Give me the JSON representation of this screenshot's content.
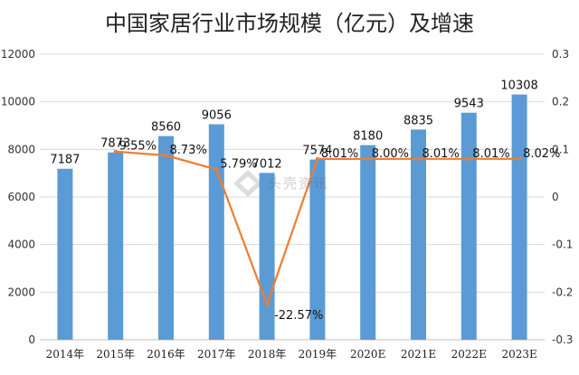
{
  "chart_data": {
    "type": "bar",
    "title": "中国家居行业市场规模（亿元）及增速",
    "categories": [
      "2014年",
      "2015年",
      "2016年",
      "2017年",
      "2018年",
      "2019年",
      "2020E",
      "2021E",
      "2022E",
      "2023E"
    ],
    "series": [
      {
        "type": "bar",
        "axis": "left",
        "values": [
          7187,
          7873,
          8560,
          9056,
          7012,
          7574,
          8180,
          8835,
          9543,
          10308
        ],
        "labels": [
          "7187",
          "7873",
          "8560",
          "9056",
          "7012",
          "7574",
          "8180",
          "8835",
          "9543",
          "10308"
        ],
        "color": "#5b9bd5"
      },
      {
        "type": "line",
        "axis": "right",
        "values": [
          null,
          0.0955,
          0.0873,
          0.0579,
          -0.2257,
          0.0801,
          0.08,
          0.0801,
          0.0801,
          0.0802
        ],
        "labels": [
          "",
          "9.55%",
          "8.73%",
          "5.79%",
          "-22.57%",
          "8.01%",
          "8.00%",
          "8.01%",
          "8.01%",
          "8.02%"
        ],
        "color": "#ed7d31"
      }
    ],
    "y_left": {
      "ylim": [
        0,
        12000
      ],
      "ticks": [
        "0",
        "2000",
        "4000",
        "6000",
        "8000",
        "10000",
        "12000"
      ]
    },
    "y_right": {
      "ylim": [
        -0.3,
        0.3
      ],
      "ticks": [
        "-0.3",
        "-0.2",
        "-0.1",
        "0",
        "0.1",
        "0.2",
        "0.3"
      ]
    },
    "grid": "horizontal",
    "legend": "none"
  },
  "watermark": {
    "text": "头壳资讯"
  }
}
